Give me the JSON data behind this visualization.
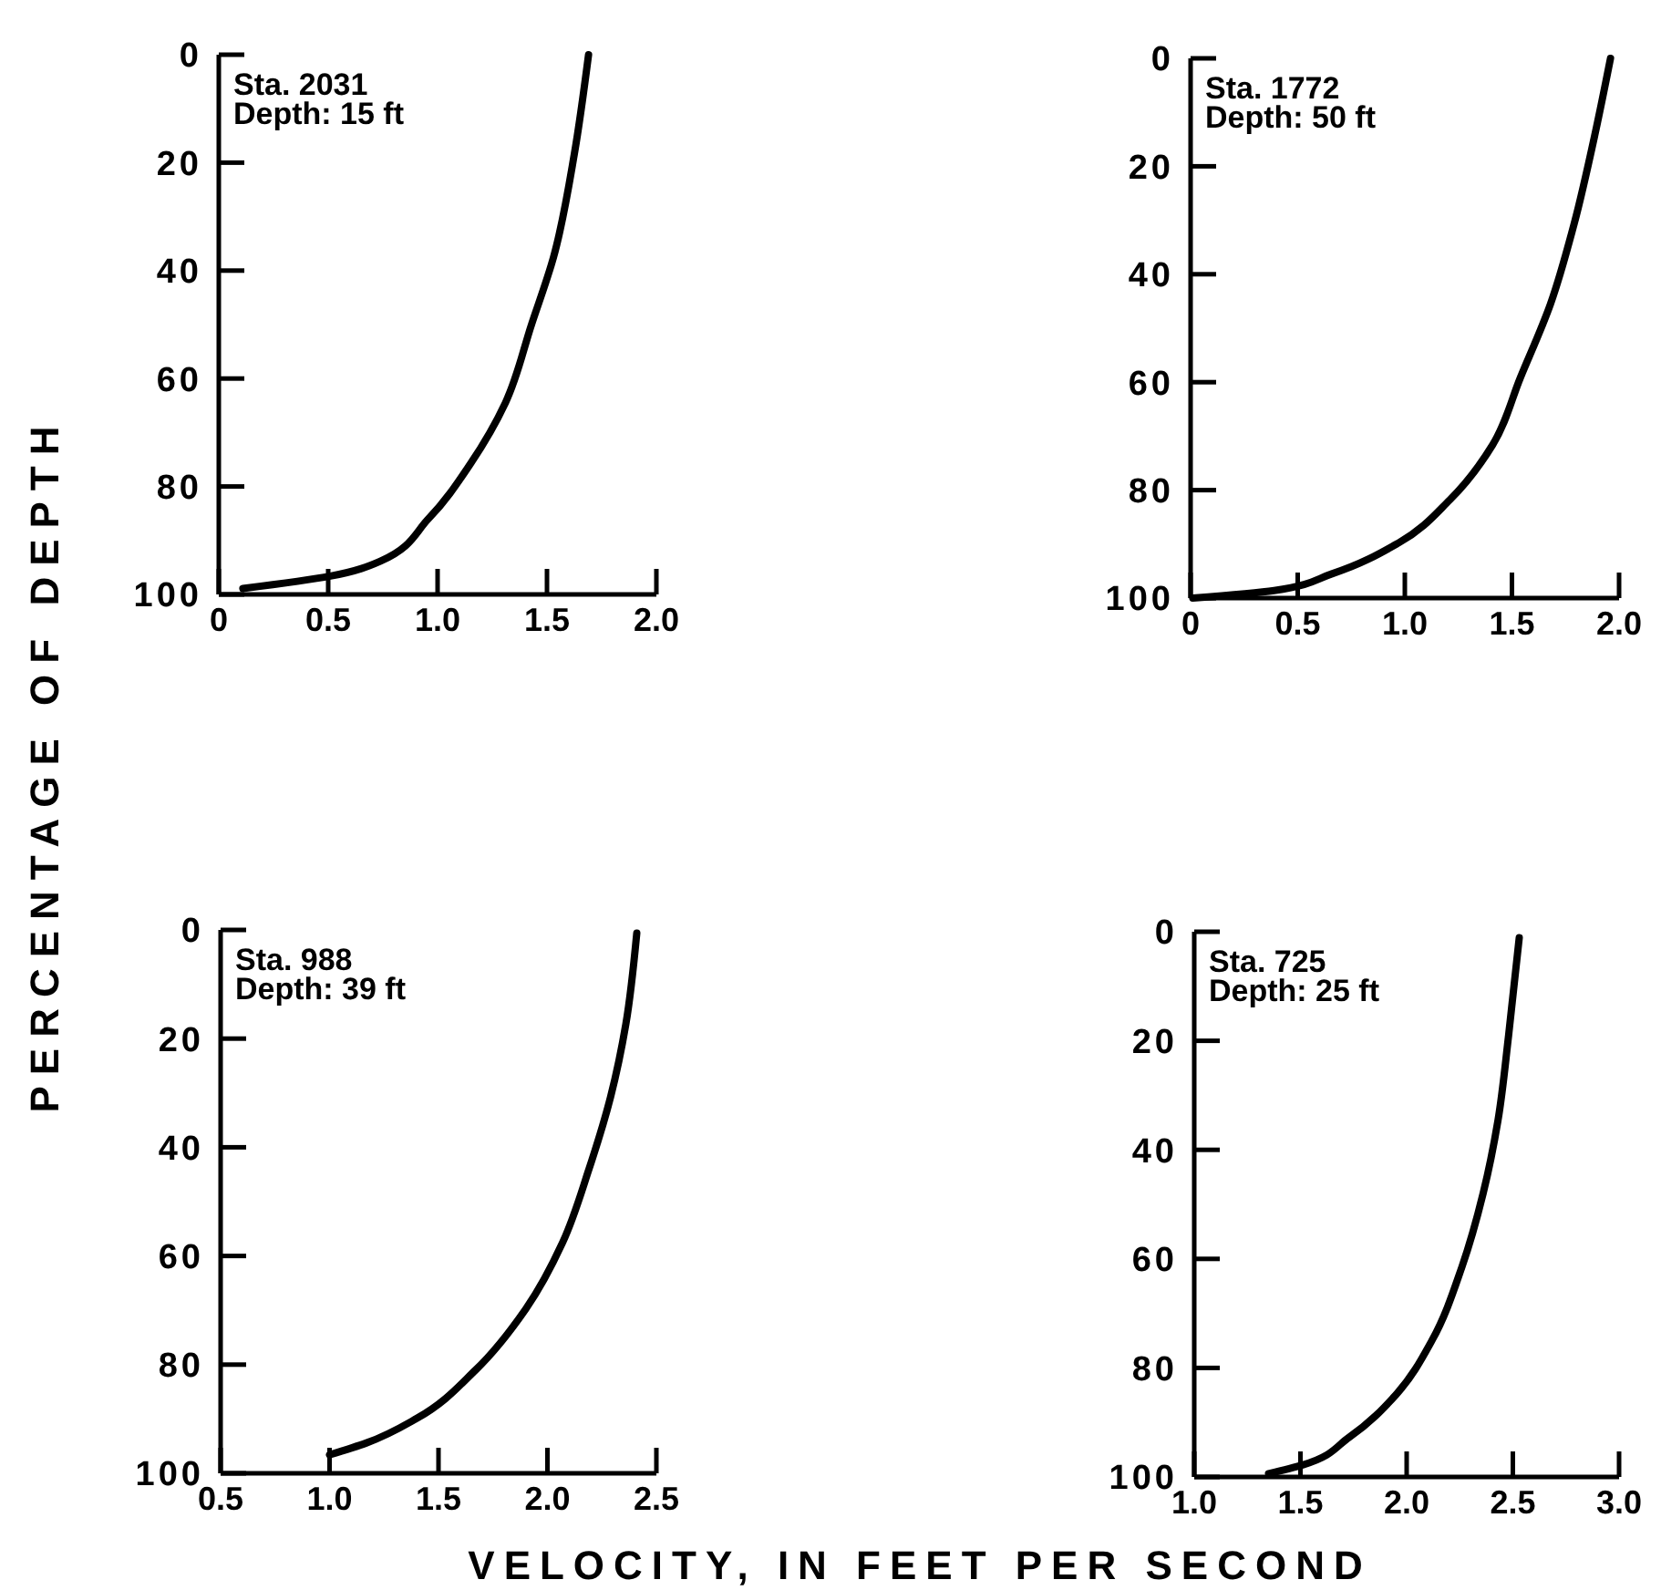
{
  "chart_data": [
    {
      "type": "line",
      "ylabel": "PERCENTAGE OF DEPTH",
      "annotations": [
        "Sta. 2031",
        "Depth: 15 ft"
      ],
      "x": [
        1.69,
        1.625,
        1.53,
        1.43,
        1.31,
        1.15,
        0.96,
        0.74,
        0.51,
        0.11
      ],
      "series": [
        {
          "color": "#000000",
          "values": [
            0,
            18.4,
            37.5,
            49.9,
            64.5,
            75.8,
            85.9,
            93.8,
            96.6,
            98.9
          ]
        }
      ],
      "xlim": [
        0,
        2
      ],
      "xticks": [
        0,
        0.5,
        {
          "value": 1,
          "label": "1.0"
        },
        1.5,
        {
          "value": 2,
          "label": "2.0"
        }
      ],
      "ylim": [
        100,
        0
      ],
      "yticks": [
        0,
        20,
        40,
        60,
        80,
        100
      ]
    },
    {
      "type": "line",
      "annotations": [
        "Sta. 1772",
        "Depth: 50 ft"
      ],
      "x": [
        1.96,
        1.89,
        1.79,
        1.68,
        1.54,
        1.41,
        1.21,
        0.97,
        0.66,
        0.39,
        0.01
      ],
      "series": [
        {
          "color": "#000000",
          "values": [
            0,
            13.6,
            30.7,
            45.5,
            59.1,
            71.6,
            81.8,
            89.8,
            95.5,
            98.6,
            100
          ]
        }
      ],
      "xlim": [
        0,
        2
      ],
      "xticks": [
        0,
        0.5,
        {
          "value": 1,
          "label": "1.0"
        },
        1.5,
        {
          "value": 2,
          "label": "2.0"
        }
      ],
      "ylim": [
        100,
        0
      ],
      "yticks": [
        0,
        20,
        40,
        60,
        80,
        100
      ]
    },
    {
      "type": "line",
      "xlabel": "VELOCITY, IN FEET PER SECOND",
      "annotations": [
        "Sta. 988",
        "Depth: 39 ft"
      ],
      "x": [
        2.41,
        2.36,
        2.29,
        2.19,
        2.07,
        1.9,
        1.67,
        1.4,
        1.17,
        1.0
      ],
      "series": [
        {
          "color": "#000000",
          "values": [
            0.6,
            17.3,
            30.7,
            44.1,
            57.5,
            69.8,
            81,
            89.9,
            94.4,
            96.6
          ]
        }
      ],
      "xlim": [
        0.5,
        2.5
      ],
      "xticks": [
        0.5,
        {
          "value": 1,
          "label": "1.0"
        },
        1.5,
        {
          "value": 2,
          "label": "2.0"
        },
        2.5
      ],
      "ylim": [
        100,
        0
      ],
      "yticks": [
        0,
        20,
        40,
        60,
        80,
        100
      ]
    },
    {
      "type": "line",
      "annotations": [
        "Sta. 725",
        "Depth: 25 ft"
      ],
      "x": [
        2.53,
        2.48,
        2.43,
        2.36,
        2.26,
        2.12,
        1.95,
        1.73,
        1.51,
        1.35
      ],
      "series": [
        {
          "color": "#000000",
          "values": [
            1.1,
            19,
            34.6,
            48,
            61.5,
            74.9,
            84.9,
            92.7,
            97.8,
            99.4
          ]
        }
      ],
      "xlim": [
        1,
        3
      ],
      "xticks": [
        {
          "value": 1,
          "label": "1.0"
        },
        1.5,
        {
          "value": 2,
          "label": "2.0"
        },
        2.5,
        {
          "value": 3,
          "label": "3.0"
        }
      ],
      "ylim": [
        100,
        0
      ],
      "yticks": [
        0,
        20,
        40,
        60,
        80,
        100
      ]
    }
  ]
}
